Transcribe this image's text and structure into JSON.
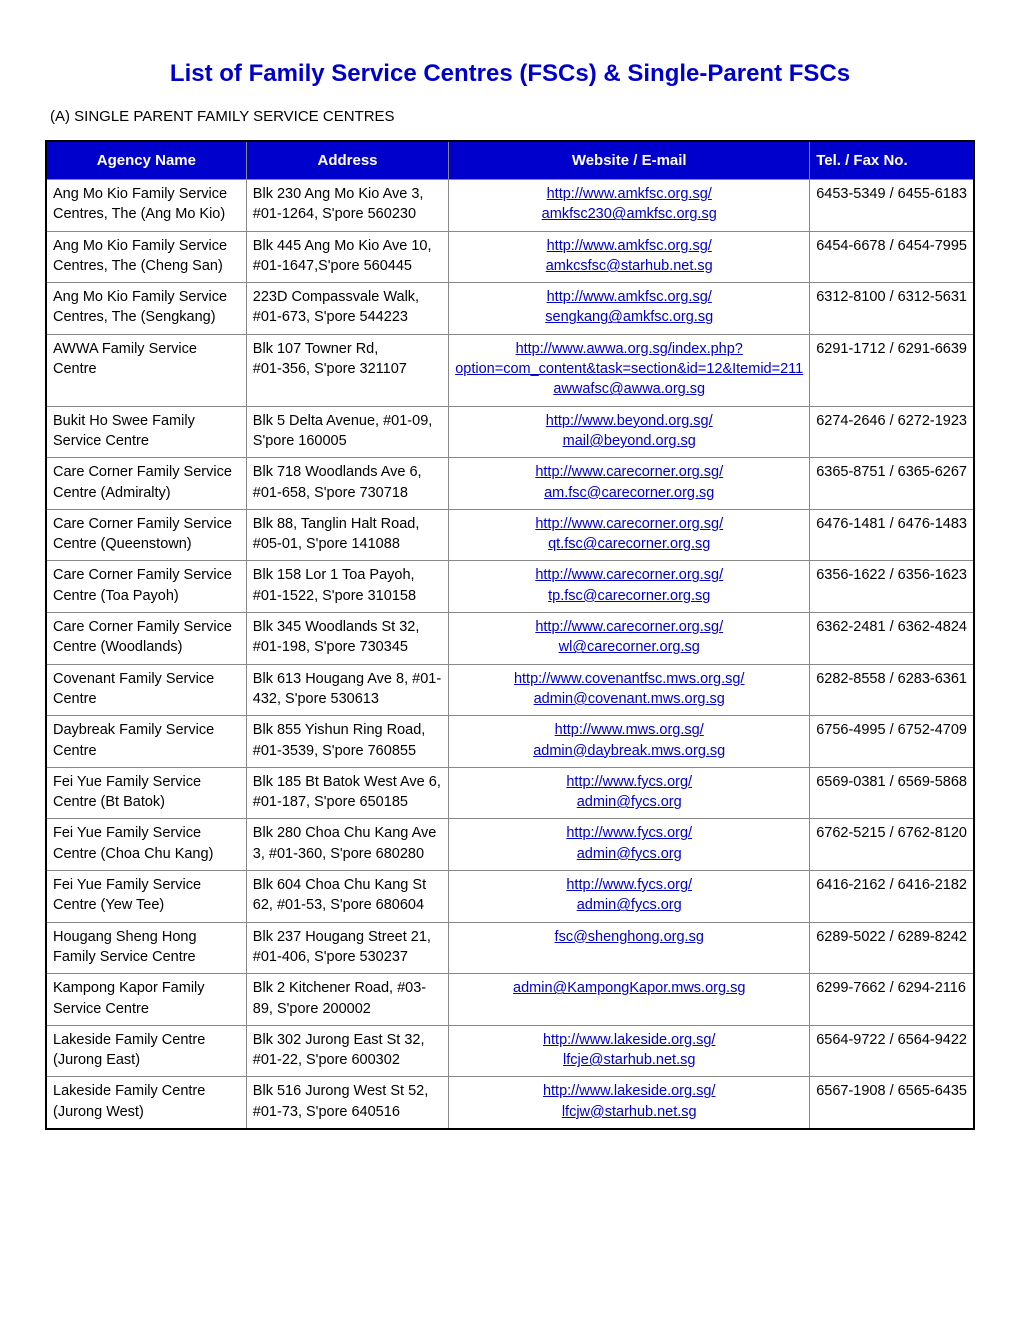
{
  "title": "List of Family Service Centres (FSCs) & Single-Parent FSCs",
  "section_label": "(A)   SINGLE PARENT FAMILY SERVICE CENTRES",
  "columns": [
    "Agency Name",
    "Address",
    "Website / E-mail",
    "Tel. / Fax No."
  ],
  "rows": [
    {
      "agency": "Ang Mo Kio Family Service Centres, The (Ang Mo Kio)",
      "address": "Blk 230 Ang Mo Kio Ave 3, #01-1264, S'pore 560230",
      "links": [
        "http://www.amkfsc.org.sg/",
        "amkfsc230@amkfsc.org.sg"
      ],
      "tel": "6453-5349 / 6455-6183"
    },
    {
      "agency": "Ang Mo Kio Family Service Centres, The (Cheng San)",
      "address": "Blk 445 Ang Mo Kio Ave 10, #01-1647,S'pore 560445",
      "links": [
        "http://www.amkfsc.org.sg/",
        "amkcsfsc@starhub.net.sg"
      ],
      "tel": "6454-6678 / 6454-7995"
    },
    {
      "agency": "Ang Mo Kio Family Service Centres, The (Sengkang)",
      "address": "223D Compassvale Walk, #01-673, S'pore 544223",
      "links": [
        "http://www.amkfsc.org.sg/",
        "sengkang@amkfsc.org.sg"
      ],
      "tel": "6312-8100 / 6312-5631"
    },
    {
      "agency": "AWWA Family Service Centre",
      "address": "Blk 107 Towner Rd,\n#01-356, S'pore 321107",
      "links": [
        "http://www.awwa.org.sg/index.php?option=com_content&task=section&id=12&Itemid=211",
        "awwafsc@awwa.org.sg"
      ],
      "tel": "6291-1712 / 6291-6639"
    },
    {
      "agency": "Bukit Ho Swee Family Service Centre",
      "address": "Blk 5 Delta Avenue, #01-09, S'pore 160005",
      "links": [
        "http://www.beyond.org.sg/",
        "mail@beyond.org.sg"
      ],
      "tel": "6274-2646 / 6272-1923"
    },
    {
      "agency": "Care Corner Family Service Centre (Admiralty)",
      "address": "Blk 718 Woodlands Ave 6, #01-658, S'pore 730718",
      "links": [
        "http://www.carecorner.org.sg/",
        "am.fsc@carecorner.org.sg"
      ],
      "tel": "6365-8751 / 6365-6267"
    },
    {
      "agency": "Care Corner Family Service Centre (Queenstown)",
      "address": "Blk 88, Tanglin Halt Road, #05-01, S'pore 141088",
      "links": [
        "http://www.carecorner.org.sg/",
        "qt.fsc@carecorner.org.sg"
      ],
      "tel": "6476-1481 / 6476-1483"
    },
    {
      "agency": "Care Corner Family Service Centre (Toa Payoh)",
      "address": "Blk 158 Lor 1 Toa Payoh, #01-1522, S'pore 310158",
      "links": [
        "http://www.carecorner.org.sg/",
        "tp.fsc@carecorner.org.sg"
      ],
      "tel": "6356-1622 / 6356-1623"
    },
    {
      "agency": "Care Corner Family Service Centre (Woodlands)",
      "address": "Blk 345 Woodlands St 32, #01-198, S'pore 730345",
      "links": [
        "http://www.carecorner.org.sg/",
        "wl@carecorner.org.sg"
      ],
      "tel": "6362-2481 / 6362-4824"
    },
    {
      "agency": "Covenant Family Service Centre",
      "address": "Blk 613 Hougang Ave 8, #01-432, S'pore 530613",
      "links": [
        "http://www.covenantfsc.mws.org.sg/",
        "admin@covenant.mws.org.sg"
      ],
      "tel": "6282-8558 / 6283-6361"
    },
    {
      "agency": "Daybreak Family Service Centre",
      "address": "Blk 855 Yishun Ring Road, #01-3539, S'pore 760855",
      "links": [
        "http://www.mws.org.sg/",
        "admin@daybreak.mws.org.sg"
      ],
      "tel": "6756-4995 / 6752-4709"
    },
    {
      "agency": "Fei Yue Family Service Centre (Bt Batok)",
      "address": "Blk 185 Bt Batok West Ave 6, #01-187, S'pore 650185",
      "links": [
        "http://www.fycs.org/",
        "admin@fycs.org"
      ],
      "tel": "6569-0381 / 6569-5868"
    },
    {
      "agency": "Fei Yue Family Service Centre (Choa Chu Kang)",
      "address": "Blk 280 Choa Chu Kang Ave 3, #01-360, S'pore 680280",
      "links": [
        "http://www.fycs.org/",
        "admin@fycs.org"
      ],
      "tel": "6762-5215 / 6762-8120"
    },
    {
      "agency": "Fei Yue Family Service Centre (Yew Tee)",
      "address": "Blk 604 Choa Chu Kang St 62, #01-53, S'pore 680604",
      "links": [
        "http://www.fycs.org/",
        "admin@fycs.org"
      ],
      "tel": "6416-2162 / 6416-2182"
    },
    {
      "agency": "Hougang Sheng Hong Family Service Centre",
      "address": "Blk 237 Hougang Street 21, #01-406, S'pore 530237",
      "links": [
        "fsc@shenghong.org.sg"
      ],
      "tel": "6289-5022 / 6289-8242"
    },
    {
      "agency": "Kampong Kapor Family Service Centre",
      "address": "Blk 2 Kitchener Road, #03-89, S'pore 200002",
      "links": [
        "admin@KampongKapor.mws.org.sg"
      ],
      "tel": "6299-7662 / 6294-2116"
    },
    {
      "agency": "Lakeside Family Centre (Jurong East)",
      "address": "Blk 302 Jurong East St 32, #01-22, S'pore 600302",
      "links": [
        "http://www.lakeside.org.sg/",
        "lfcje@starhub.net.sg"
      ],
      "tel": "6564-9722 / 6564-9422"
    },
    {
      "agency": "Lakeside Family Centre (Jurong West)",
      "address": "Blk 516 Jurong West St 52, #01-73, S'pore 640516",
      "links": [
        "http://www.lakeside.org.sg/",
        "lfcjw@starhub.net.sg"
      ],
      "tel": "6567-1908 / 6565-6435"
    }
  ]
}
